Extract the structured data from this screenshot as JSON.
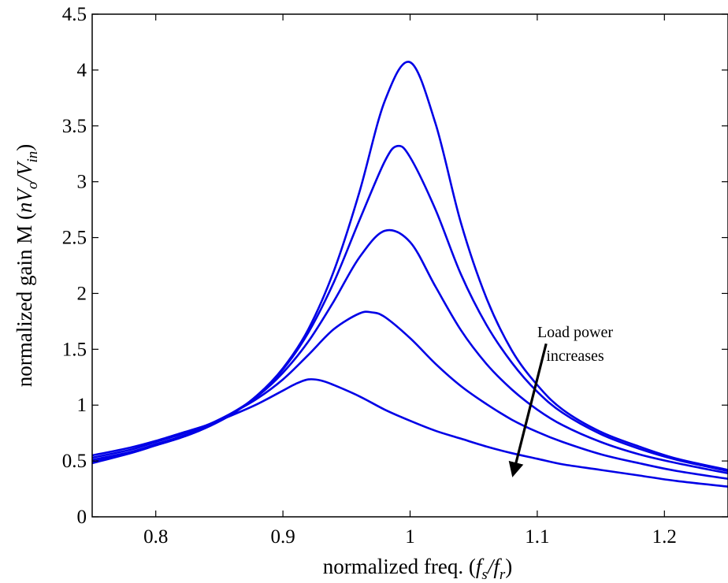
{
  "chart_data": {
    "type": "line",
    "title": "",
    "xlabel": {
      "prefix": "normalized freq. (",
      "f1": "f",
      "sub1": "s",
      "slash": "/",
      "f2": "f",
      "sub2": "r",
      "suffix": ")"
    },
    "ylabel": {
      "prefix": "normalized gain M (",
      "n": "n",
      "v1": "V",
      "sub1": "o",
      "slash": "/",
      "v2": "V",
      "sub2": "in",
      "suffix": ")"
    },
    "xlim": [
      0.75,
      1.25
    ],
    "ylim": [
      0,
      4.5
    ],
    "xticks": [
      0.8,
      0.9,
      1.0,
      1.1,
      1.2
    ],
    "xtick_labels": [
      "0.8",
      "0.9",
      "1",
      "1.1",
      "1.2"
    ],
    "yticks": [
      0,
      0.5,
      1,
      1.5,
      2,
      2.5,
      3,
      3.5,
      4,
      4.5
    ],
    "ytick_labels": [
      "0",
      "0.5",
      "1",
      "1.5",
      "2",
      "2.5",
      "3",
      "3.5",
      "4",
      "4.5"
    ],
    "grid": false,
    "line_color": "#0000e6",
    "series": [
      {
        "x": [
          0.75,
          0.78,
          0.8,
          0.82,
          0.84,
          0.86,
          0.88,
          0.9,
          0.92,
          0.94,
          0.96,
          0.98,
          1.0,
          1.02,
          1.04,
          1.06,
          1.08,
          1.1,
          1.12,
          1.15,
          1.18,
          1.21,
          1.25
        ],
        "values": [
          0.48,
          0.57,
          0.64,
          0.71,
          0.8,
          0.92,
          1.09,
          1.33,
          1.68,
          2.2,
          2.9,
          3.72,
          4.07,
          3.52,
          2.63,
          1.96,
          1.49,
          1.18,
          0.96,
          0.76,
          0.63,
          0.52,
          0.42
        ]
      },
      {
        "x": [
          0.75,
          0.78,
          0.8,
          0.82,
          0.84,
          0.86,
          0.88,
          0.9,
          0.92,
          0.94,
          0.96,
          0.98,
          0.99,
          1.0,
          1.02,
          1.04,
          1.06,
          1.08,
          1.1,
          1.12,
          1.15,
          1.18,
          1.21,
          1.25
        ],
        "values": [
          0.49,
          0.57,
          0.64,
          0.71,
          0.8,
          0.92,
          1.09,
          1.32,
          1.65,
          2.1,
          2.65,
          3.18,
          3.32,
          3.22,
          2.75,
          2.17,
          1.72,
          1.38,
          1.12,
          0.93,
          0.74,
          0.61,
          0.51,
          0.41
        ]
      },
      {
        "x": [
          0.75,
          0.78,
          0.8,
          0.82,
          0.84,
          0.86,
          0.88,
          0.9,
          0.92,
          0.94,
          0.96,
          0.98,
          1.0,
          1.02,
          1.04,
          1.06,
          1.08,
          1.1,
          1.12,
          1.15,
          1.18,
          1.21,
          1.25
        ],
        "values": [
          0.51,
          0.58,
          0.65,
          0.72,
          0.81,
          0.93,
          1.08,
          1.29,
          1.57,
          1.93,
          2.32,
          2.56,
          2.46,
          2.06,
          1.67,
          1.37,
          1.14,
          0.96,
          0.82,
          0.67,
          0.56,
          0.48,
          0.39
        ]
      },
      {
        "x": [
          0.75,
          0.78,
          0.8,
          0.82,
          0.84,
          0.86,
          0.88,
          0.9,
          0.92,
          0.94,
          0.96,
          0.97,
          0.98,
          1.0,
          1.02,
          1.04,
          1.06,
          1.08,
          1.1,
          1.12,
          1.15,
          1.18,
          1.21,
          1.25
        ],
        "values": [
          0.53,
          0.6,
          0.67,
          0.74,
          0.82,
          0.93,
          1.06,
          1.23,
          1.45,
          1.68,
          1.82,
          1.83,
          1.79,
          1.6,
          1.37,
          1.17,
          1.01,
          0.87,
          0.76,
          0.67,
          0.56,
          0.48,
          0.41,
          0.34
        ]
      },
      {
        "x": [
          0.75,
          0.78,
          0.8,
          0.82,
          0.84,
          0.86,
          0.88,
          0.9,
          0.91,
          0.92,
          0.93,
          0.94,
          0.96,
          0.98,
          1.0,
          1.02,
          1.04,
          1.06,
          1.08,
          1.1,
          1.12,
          1.15,
          1.18,
          1.21,
          1.25
        ],
        "values": [
          0.55,
          0.62,
          0.68,
          0.75,
          0.82,
          0.91,
          1.01,
          1.13,
          1.19,
          1.23,
          1.22,
          1.18,
          1.08,
          0.96,
          0.86,
          0.77,
          0.7,
          0.63,
          0.57,
          0.52,
          0.47,
          0.42,
          0.37,
          0.32,
          0.27
        ]
      }
    ],
    "annotation": {
      "line1": "Load power",
      "line2": "increases",
      "arrow": {
        "from": [
          1.107,
          1.55
        ],
        "to": [
          1.081,
          0.38
        ]
      }
    }
  }
}
